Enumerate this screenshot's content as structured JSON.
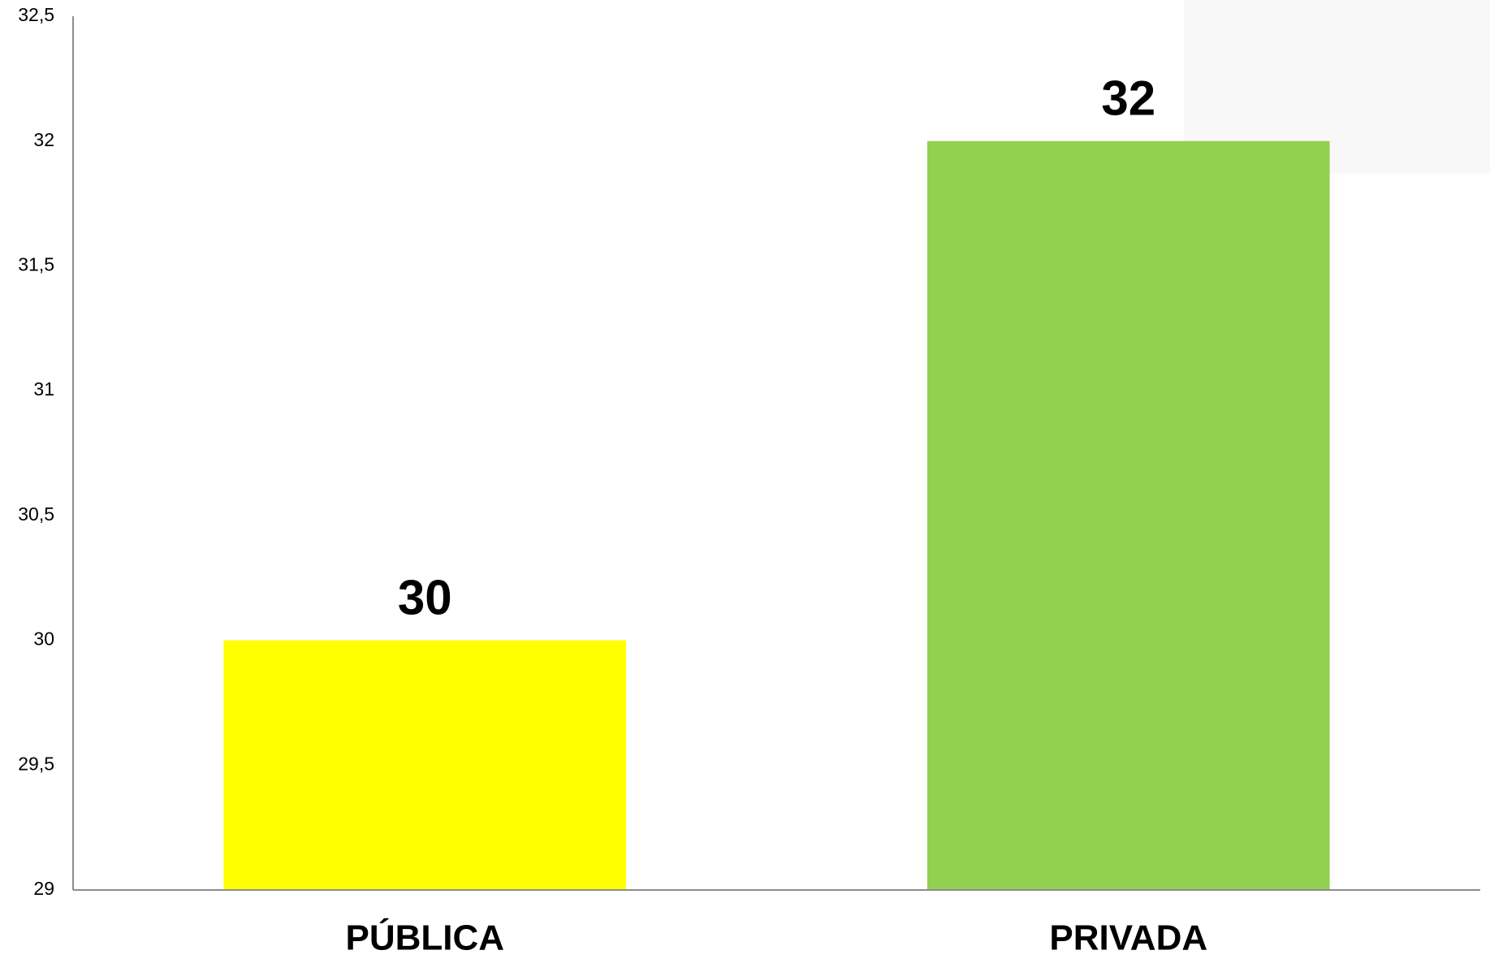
{
  "chart_data": {
    "type": "bar",
    "categories": [
      "PÚBLICA",
      "PRIVADA"
    ],
    "values": [
      30,
      32
    ],
    "colors": [
      "#ffff00",
      "#92d050"
    ],
    "ylim": [
      29,
      32.5
    ],
    "yticks": [
      29,
      {
        "value": 29.5,
        "label": "29,5"
      },
      30,
      {
        "value": 30.5,
        "label": "30,5"
      },
      31,
      {
        "value": 31.5,
        "label": "31,5"
      },
      32,
      {
        "value": 32.5,
        "label": "32,5"
      }
    ],
    "grid": false,
    "data_labels": true
  }
}
